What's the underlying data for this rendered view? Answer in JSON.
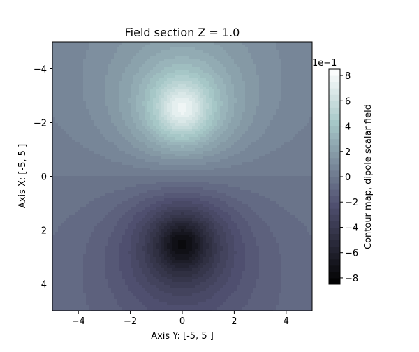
{
  "chart_data": {
    "type": "heatmap",
    "subtype": "filled-contour",
    "title": "Field section Z = 1.0",
    "xlabel": "Axis Y: [-5, 5 ]",
    "ylabel": "Axis X: [-5, 5 ]",
    "xlim": [
      -5,
      5
    ],
    "ylim": [
      5,
      -5
    ],
    "y_inverted": true,
    "x_ticks": [
      "−4",
      "−2",
      "0",
      "2",
      "4"
    ],
    "x_tick_values": [
      -4,
      -2,
      0,
      2,
      4
    ],
    "y_ticks": [
      "−4",
      "−2",
      "0",
      "2",
      "4"
    ],
    "y_tick_values": [
      -4,
      -2,
      0,
      2,
      4
    ],
    "field": {
      "kind": "dipole",
      "positive_pole": {
        "x": 0,
        "y": -2.5
      },
      "negative_pole": {
        "x": 0,
        "y": 2.5
      },
      "max_value": 0.82,
      "min_value": -0.82
    },
    "colormap": "bone",
    "colorbar": {
      "label": "Contour map, dipole scalar field",
      "offset_text": "1e−1",
      "range": [
        -8.5,
        8.5
      ],
      "ticks": [
        "−8",
        "−6",
        "−4",
        "−2",
        "0",
        "2",
        "4",
        "6",
        "8"
      ],
      "tick_values": [
        -8,
        -6,
        -4,
        -2,
        0,
        2,
        4,
        6,
        8
      ]
    },
    "grid": false,
    "legend": "none"
  }
}
